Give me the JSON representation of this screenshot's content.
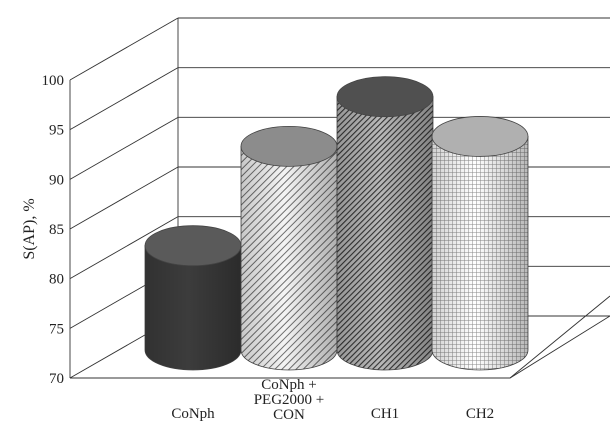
{
  "chart_data": {
    "type": "bar",
    "style": "3d-cylinder",
    "title": "",
    "xlabel": "",
    "ylabel": "S(AP), %",
    "ylim": [
      70,
      100
    ],
    "yticks": [
      70,
      75,
      80,
      85,
      90,
      95,
      100
    ],
    "grid": true,
    "legend": "none",
    "categories": [
      [
        "CoNph"
      ],
      [
        "CoNph +",
        "PEG2000 +",
        "CON"
      ],
      [
        "CH1"
      ],
      [
        "CH2"
      ]
    ],
    "values": [
      80.5,
      90.5,
      95.5,
      91.5
    ],
    "fills": [
      "solid-dark",
      "diagonal-light",
      "diagonal-dark",
      "grid"
    ],
    "colors": {
      "solid_dark": "#3c3c3c",
      "diagonal_light": "#7a7a7a",
      "diagonal_dark": "#4a4a4a",
      "grid": "#8a8a8a",
      "gridline": "#333333"
    }
  }
}
